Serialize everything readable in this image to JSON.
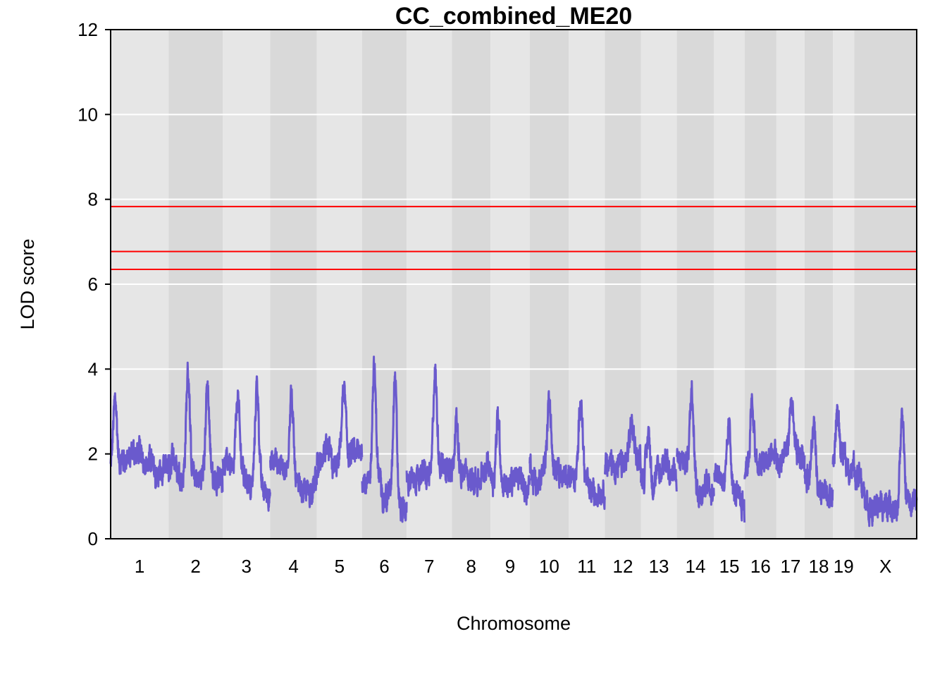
{
  "chart_data": {
    "type": "line",
    "title": "CC_combined_ME20",
    "xlabel": "Chromosome",
    "ylabel": "LOD score",
    "ylim": [
      0,
      12
    ],
    "yticks": [
      "0",
      "2",
      "4",
      "6",
      "8",
      "10",
      "12"
    ],
    "grid": true,
    "chromosomes": [
      {
        "label": "1",
        "start": 0.0,
        "end": 195.0
      },
      {
        "label": "2",
        "start": 195.0,
        "end": 377.0
      },
      {
        "label": "3",
        "start": 377.0,
        "end": 537.0
      },
      {
        "label": "4",
        "start": 537.0,
        "end": 694.0
      },
      {
        "label": "5",
        "start": 694.0,
        "end": 846.0
      },
      {
        "label": "6",
        "start": 846.0,
        "end": 996.0
      },
      {
        "label": "7",
        "start": 996.0,
        "end": 1148.0
      },
      {
        "label": "8",
        "start": 1148.0,
        "end": 1278.0
      },
      {
        "label": "9",
        "start": 1278.0,
        "end": 1410.0
      },
      {
        "label": "10",
        "start": 1410.0,
        "end": 1541.0
      },
      {
        "label": "11",
        "start": 1541.0,
        "end": 1663.0
      },
      {
        "label": "12",
        "start": 1663.0,
        "end": 1784.0
      },
      {
        "label": "13",
        "start": 1784.0,
        "end": 1905.0
      },
      {
        "label": "14",
        "start": 1905.0,
        "end": 2030.0
      },
      {
        "label": "15",
        "start": 2030.0,
        "end": 2133.0
      },
      {
        "label": "16",
        "start": 2133.0,
        "end": 2240.0
      },
      {
        "label": "17",
        "start": 2240.0,
        "end": 2335.0
      },
      {
        "label": "18",
        "start": 2335.0,
        "end": 2430.0
      },
      {
        "label": "19",
        "start": 2430.0,
        "end": 2502.0
      },
      {
        "label": "X",
        "start": 2502.0,
        "end": 2712.0
      }
    ],
    "thresholds": [
      7.83,
      6.77,
      6.35
    ],
    "threshold_color": "#ff0000",
    "series": [
      {
        "color": "#6a5acd",
        "peaks": [
          {
            "chr": "1",
            "pos": 15,
            "lod": 3.3
          },
          {
            "chr": "2",
            "pos": 65,
            "lod": 3.95
          },
          {
            "chr": "2",
            "pos": 130,
            "lod": 3.65
          },
          {
            "chr": "3",
            "pos": 50,
            "lod": 3.35
          },
          {
            "chr": "3",
            "pos": 115,
            "lod": 3.67
          },
          {
            "chr": "4",
            "pos": 70,
            "lod": 3.4
          },
          {
            "chr": "5",
            "pos": 90,
            "lod": 3.55
          },
          {
            "chr": "6",
            "pos": 40,
            "lod": 4.02
          },
          {
            "chr": "6",
            "pos": 110,
            "lod": 3.8
          },
          {
            "chr": "7",
            "pos": 95,
            "lod": 3.95
          },
          {
            "chr": "8",
            "pos": 15,
            "lod": 2.8
          },
          {
            "chr": "9",
            "pos": 25,
            "lod": 2.9
          },
          {
            "chr": "10",
            "pos": 65,
            "lod": 3.35
          },
          {
            "chr": "11",
            "pos": 40,
            "lod": 3.3
          },
          {
            "chr": "12",
            "pos": 90,
            "lod": 2.7
          },
          {
            "chr": "13",
            "pos": 25,
            "lod": 2.5
          },
          {
            "chr": "14",
            "pos": 50,
            "lod": 3.55
          },
          {
            "chr": "15",
            "pos": 50,
            "lod": 2.65
          },
          {
            "chr": "16",
            "pos": 25,
            "lod": 3.2
          },
          {
            "chr": "17",
            "pos": 50,
            "lod": 3.25
          },
          {
            "chr": "18",
            "pos": 30,
            "lod": 2.6
          },
          {
            "chr": "19",
            "pos": 15,
            "lod": 3.05
          },
          {
            "chr": "X",
            "pos": 160,
            "lod": 2.9
          }
        ]
      }
    ]
  },
  "colors": {
    "band_light": "#e6e6e6",
    "band_dark": "#d9d9d9",
    "gridline": "#ffffff",
    "frame": "#000000"
  }
}
